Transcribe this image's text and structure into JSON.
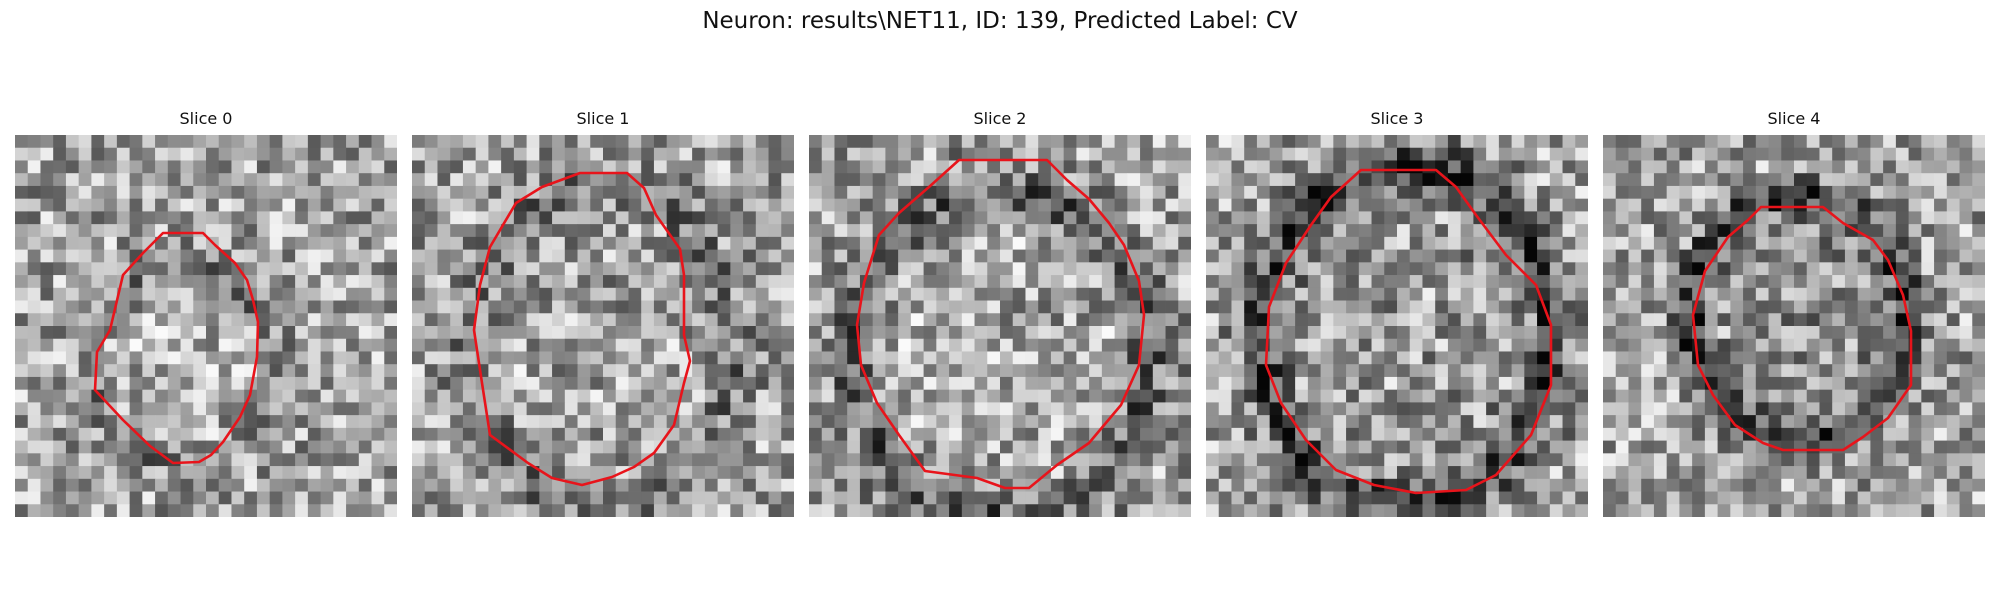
{
  "figure": {
    "title": "Neuron: results\\NET11, ID: 139, Predicted Label: CV",
    "outline_color": "#e8141b",
    "colormap": "grayscale"
  },
  "panels": [
    {
      "title": "Slice 0"
    },
    {
      "title": "Slice 1"
    },
    {
      "title": "Slice 2"
    },
    {
      "title": "Slice 3"
    },
    {
      "title": "Slice 4"
    }
  ]
}
